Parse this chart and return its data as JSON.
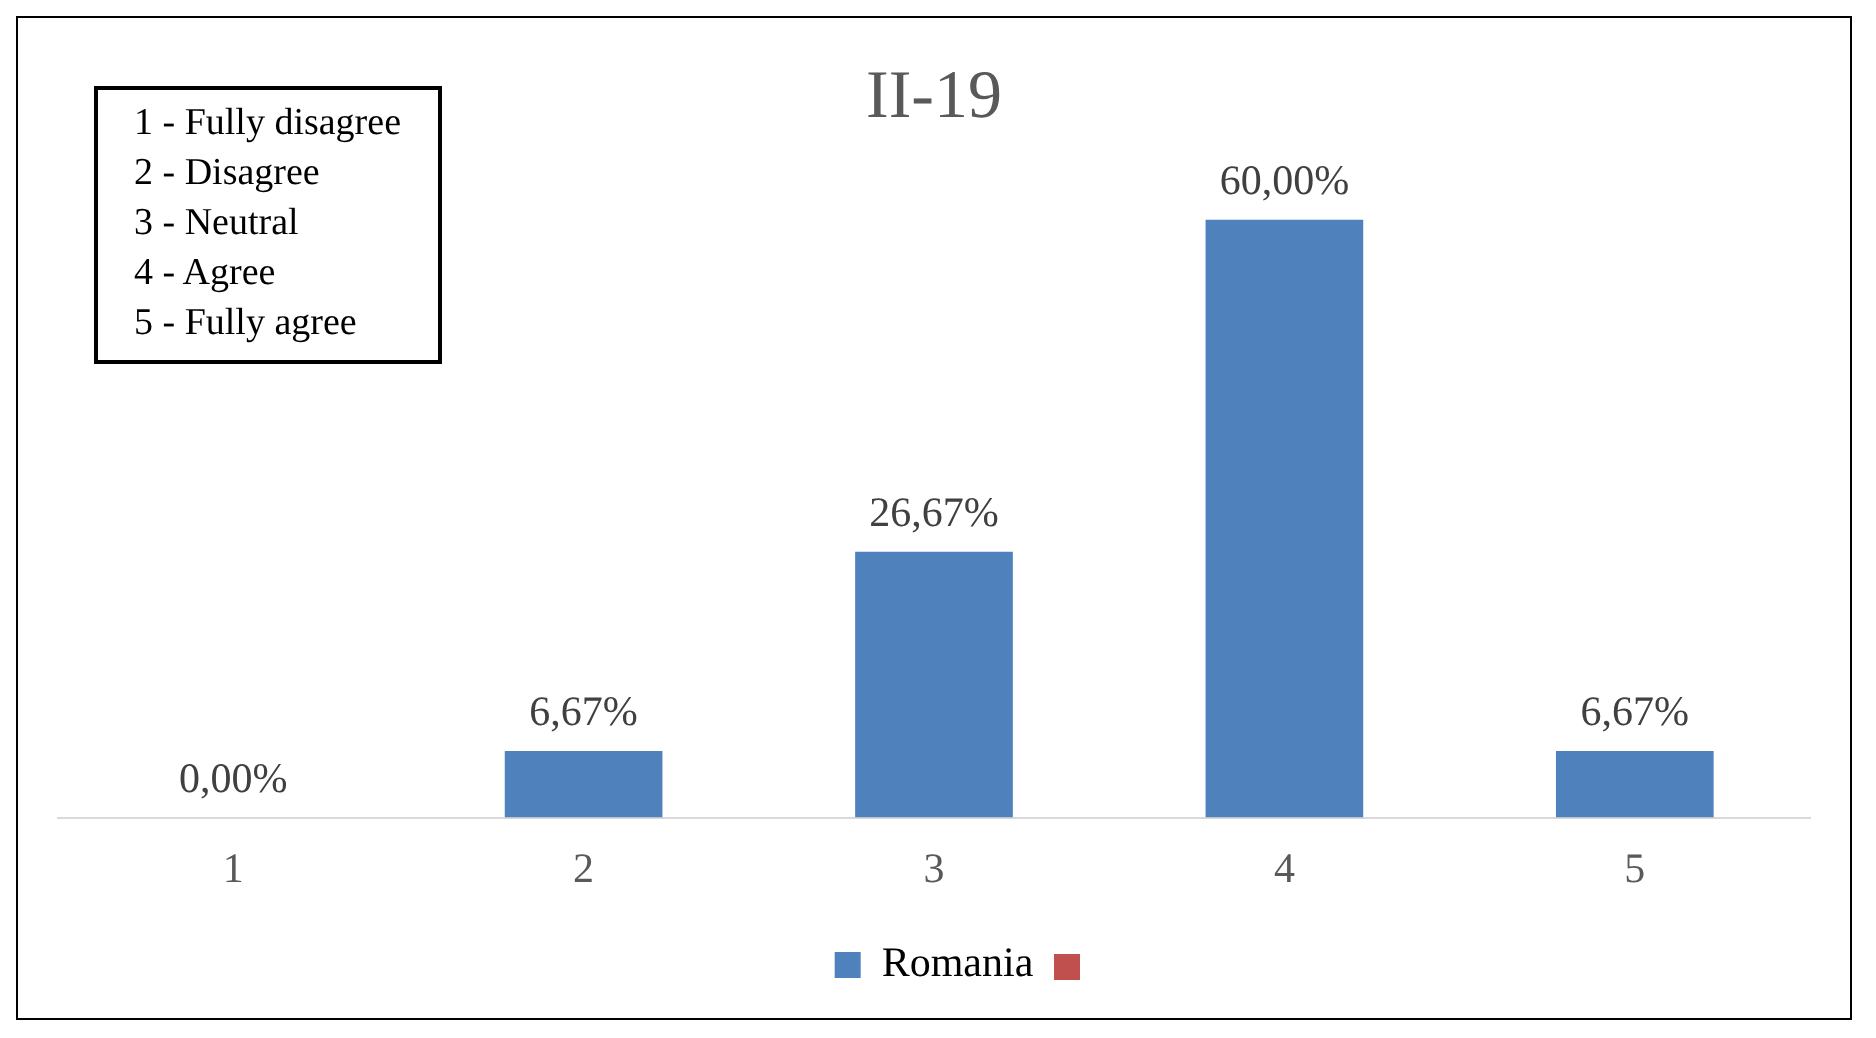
{
  "chart_data": {
    "type": "bar",
    "title": "II-19",
    "categories": [
      "1",
      "2",
      "3",
      "4",
      "5"
    ],
    "series": [
      {
        "name": "Romania",
        "color": "#4f81bd",
        "values": [
          0,
          6.67,
          26.67,
          60,
          6.67
        ],
        "value_labels": [
          "0,00%",
          "6,67%",
          "26,67%",
          "60,00%",
          "6,67%"
        ]
      }
    ],
    "tick_labels": "x",
    "legend": "bottom",
    "grid": false,
    "annotations": [
      "1 - Fully disagree",
      "2 - Disagree",
      "3 - Neutral",
      "4 - Agree",
      "5 - Fully agree"
    ]
  }
}
